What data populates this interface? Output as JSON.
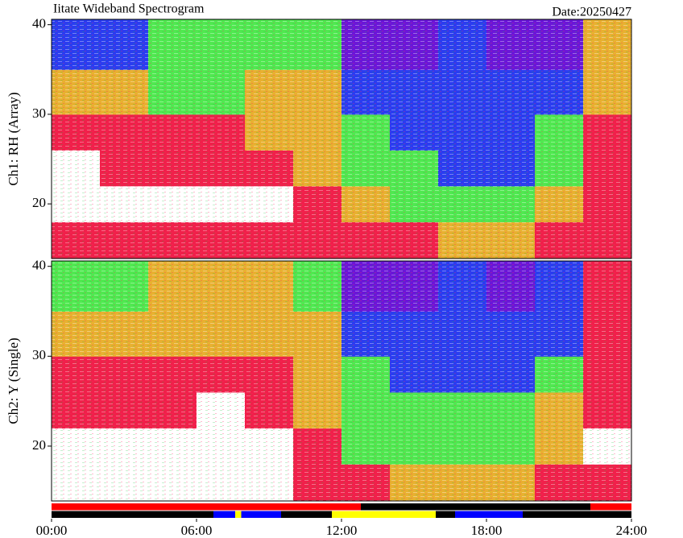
{
  "chart_data": [
    {
      "type": "heatmap",
      "title": "Iitate Wideband Spectrogram",
      "subtitle": "Date:20250427",
      "ylabel": "Ch1: RH (Array)",
      "xlim": [
        0,
        24
      ],
      "ylim": [
        13.9,
        40.6
      ],
      "yticks": [
        20,
        30,
        40
      ],
      "xbins": [
        0,
        2,
        4,
        6,
        8,
        10,
        12,
        14,
        16,
        18,
        20,
        22,
        24
      ],
      "ybins": [
        13.9,
        18,
        22,
        26,
        30,
        35,
        40.6
      ],
      "colormap": [
        "#ffffff",
        "#f0204a",
        "#e8b030",
        "#50e850",
        "#2a3cf0",
        "#6a16d8"
      ],
      "values": [
        [
          1,
          1,
          1,
          1,
          1,
          1,
          1,
          1,
          2,
          2,
          1,
          1
        ],
        [
          0,
          0,
          0,
          0,
          0,
          1,
          2,
          3,
          3,
          3,
          2,
          1
        ],
        [
          0,
          1,
          1,
          1,
          1,
          2,
          3,
          3,
          4,
          4,
          3,
          1
        ],
        [
          1,
          1,
          1,
          1,
          2,
          2,
          3,
          4,
          4,
          4,
          3,
          1
        ],
        [
          2,
          2,
          3,
          3,
          2,
          2,
          4,
          4,
          4,
          4,
          4,
          2
        ],
        [
          4,
          4,
          3,
          3,
          3,
          3,
          5,
          5,
          4,
          5,
          5,
          2
        ]
      ]
    },
    {
      "type": "heatmap",
      "ylabel": "Ch2: Y (Single)",
      "xlim": [
        0,
        24
      ],
      "ylim": [
        13.9,
        40.6
      ],
      "yticks": [
        20,
        30,
        40
      ],
      "xbins": [
        0,
        2,
        4,
        6,
        8,
        10,
        12,
        14,
        16,
        18,
        20,
        22,
        24
      ],
      "ybins": [
        13.9,
        18,
        22,
        26,
        30,
        35,
        40.6
      ],
      "colormap": [
        "#ffffff",
        "#f0204a",
        "#e8b030",
        "#50e850",
        "#2a3cf0",
        "#6a16d8"
      ],
      "values": [
        [
          0,
          0,
          0,
          0,
          0,
          1,
          1,
          2,
          2,
          2,
          1,
          1
        ],
        [
          0,
          0,
          0,
          0,
          0,
          1,
          3,
          3,
          3,
          3,
          2,
          0
        ],
        [
          1,
          1,
          1,
          0,
          1,
          2,
          3,
          3,
          3,
          3,
          2,
          1
        ],
        [
          1,
          1,
          1,
          1,
          1,
          2,
          3,
          4,
          4,
          4,
          3,
          1
        ],
        [
          2,
          2,
          2,
          2,
          2,
          2,
          4,
          4,
          4,
          4,
          4,
          1
        ],
        [
          3,
          3,
          2,
          2,
          2,
          3,
          5,
          5,
          4,
          5,
          4,
          1
        ]
      ]
    },
    {
      "type": "timeline",
      "xlim": [
        0,
        24
      ],
      "xticks": [
        {
          "value": 0,
          "label": "00:00"
        },
        {
          "value": 6,
          "label": "06:00"
        },
        {
          "value": 12,
          "label": "12:00"
        },
        {
          "value": 18,
          "label": "18:00"
        },
        {
          "value": 24,
          "label": "24:00"
        }
      ],
      "rows": [
        [
          {
            "start": 0,
            "end": 12.8,
            "color": "#ff0000"
          },
          {
            "start": 12.8,
            "end": 22.3,
            "color": "#000000"
          },
          {
            "start": 22.3,
            "end": 24,
            "color": "#ff0000"
          }
        ],
        [
          {
            "start": 0,
            "end": 6.7,
            "color": "#000000"
          },
          {
            "start": 6.7,
            "end": 7.6,
            "color": "#0000ff"
          },
          {
            "start": 7.6,
            "end": 7.85,
            "color": "#ffff00"
          },
          {
            "start": 7.85,
            "end": 9.5,
            "color": "#0000ff"
          },
          {
            "start": 9.5,
            "end": 11.6,
            "color": "#000000"
          },
          {
            "start": 11.6,
            "end": 15.9,
            "color": "#ffff00"
          },
          {
            "start": 15.9,
            "end": 16.7,
            "color": "#000000"
          },
          {
            "start": 16.7,
            "end": 19.5,
            "color": "#0000ff"
          },
          {
            "start": 19.5,
            "end": 24,
            "color": "#000000"
          }
        ]
      ]
    }
  ]
}
